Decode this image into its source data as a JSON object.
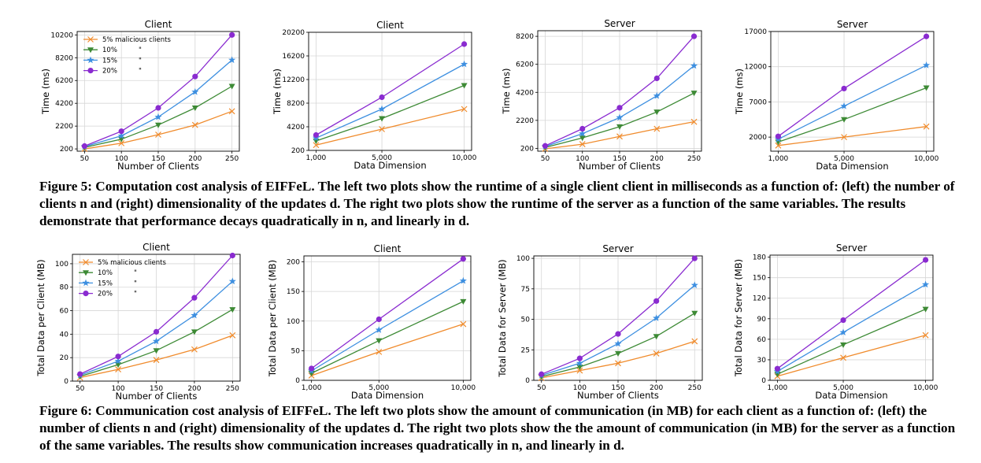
{
  "figure5": {
    "caption": "Figure 5: Computation cost analysis of EIFFeL. The left two plots show the runtime of a single client client in milliseconds as a function of: (left) the number of clients n and (right) dimensionality of the updates d. The right two plots show the runtime of the server as a function of the same variables. The results demonstrate that performance decays quadratically in n, and linearly in d."
  },
  "figure6": {
    "caption": "Figure 6: Communication cost analysis of EIFFeL. The left two plots show the amount of communication (in MB) for each client as a function of: (left) the number of clients n and (right) dimensionality of the updates d. The right two plots show the the amount of communication (in MB) for the server as a function of the same variables. The results show communication increases quadratically in n, and linearly in d."
  },
  "colors": {
    "5%": "#f08b2c",
    "10%": "#3d8a35",
    "15%": "#3d8fe0",
    "20%": "#8a2bd0"
  },
  "chart_data": [
    {
      "type": "line",
      "title": "Client",
      "xlabel": "Number of Clients",
      "ylabel": "Time (ms)",
      "x": [
        50,
        100,
        150,
        200,
        250
      ],
      "xticks": [
        "50",
        "100",
        "150",
        "200",
        "250"
      ],
      "ylim": [
        0,
        10500
      ],
      "yticks": [
        200,
        2200,
        4200,
        6200,
        8200,
        10200
      ],
      "legend": {
        "placement": "top-left",
        "entries": [
          "5% malicious clients",
          "10%",
          "15%",
          "20%"
        ],
        "ditto": [
          "",
          "\"",
          "\"",
          "\""
        ]
      },
      "series": [
        {
          "name": "5%",
          "values": [
            200,
            700,
            1450,
            2300,
            3500
          ]
        },
        {
          "name": "10%",
          "values": [
            330,
            1050,
            2300,
            3800,
            5700
          ]
        },
        {
          "name": "15%",
          "values": [
            400,
            1350,
            3000,
            5200,
            8000
          ]
        },
        {
          "name": "20%",
          "values": [
            450,
            1750,
            3800,
            6550,
            10200
          ]
        }
      ]
    },
    {
      "type": "line",
      "title": "Client",
      "xlabel": "Data Dimension",
      "ylabel": "Time (ms)",
      "x": [
        1000,
        5000,
        10000
      ],
      "xticks": [
        "1,000",
        "5,000",
        "10,000"
      ],
      "ylim": [
        200,
        20200
      ],
      "yticks": [
        200,
        4200,
        8200,
        12200,
        16200,
        20200
      ],
      "series": [
        {
          "name": "5%",
          "values": [
            1100,
            3800,
            7200
          ]
        },
        {
          "name": "10%",
          "values": [
            1800,
            5600,
            11200
          ]
        },
        {
          "name": "15%",
          "values": [
            2300,
            7200,
            14800
          ]
        },
        {
          "name": "20%",
          "values": [
            2800,
            9200,
            18200
          ]
        }
      ]
    },
    {
      "type": "line",
      "title": "Server",
      "xlabel": "Number of Clients",
      "ylabel": "Time (ms)",
      "x": [
        50,
        100,
        150,
        200,
        250
      ],
      "xticks": [
        "50",
        "100",
        "150",
        "200",
        "250"
      ],
      "ylim": [
        0,
        8600
      ],
      "yticks": [
        200,
        2200,
        4200,
        6200,
        8200
      ],
      "series": [
        {
          "name": "5%",
          "values": [
            170,
            500,
            1050,
            1600,
            2100
          ]
        },
        {
          "name": "10%",
          "values": [
            270,
            950,
            1750,
            2800,
            4150
          ]
        },
        {
          "name": "15%",
          "values": [
            330,
            1250,
            2400,
            3950,
            6100
          ]
        },
        {
          "name": "20%",
          "values": [
            380,
            1600,
            3100,
            5200,
            8200
          ]
        }
      ]
    },
    {
      "type": "line",
      "title": "Server",
      "xlabel": "Data Dimension",
      "ylabel": "Time (ms)",
      "x": [
        1000,
        5000,
        10000
      ],
      "xticks": [
        "1,000",
        "5,000",
        "10,000"
      ],
      "ylim": [
        0,
        17000
      ],
      "yticks": [
        2000,
        7000,
        12000,
        17000
      ],
      "series": [
        {
          "name": "5%",
          "values": [
            800,
            2000,
            3500
          ]
        },
        {
          "name": "10%",
          "values": [
            1300,
            4500,
            9000
          ]
        },
        {
          "name": "15%",
          "values": [
            1700,
            6400,
            12200
          ]
        },
        {
          "name": "20%",
          "values": [
            2100,
            8900,
            16300
          ]
        }
      ]
    },
    {
      "type": "line",
      "title": "Client",
      "xlabel": "Number of Clients",
      "ylabel": "Total Data per Client (MB)",
      "x": [
        50,
        100,
        150,
        200,
        250
      ],
      "xticks": [
        "50",
        "100",
        "150",
        "200",
        "250"
      ],
      "ylim": [
        0,
        108
      ],
      "yticks": [
        0,
        20,
        40,
        60,
        80,
        100
      ],
      "legend": {
        "placement": "top-left",
        "entries": [
          "5% malicious clients",
          "10%",
          "15%",
          "20%"
        ],
        "ditto": [
          "",
          "\"",
          "\"",
          "\""
        ]
      },
      "series": [
        {
          "name": "5%",
          "values": [
            3,
            10,
            18,
            27,
            39
          ]
        },
        {
          "name": "10%",
          "values": [
            4,
            14,
            26,
            42,
            61
          ]
        },
        {
          "name": "15%",
          "values": [
            5,
            17,
            34,
            56,
            85
          ]
        },
        {
          "name": "20%",
          "values": [
            6,
            21,
            42,
            71,
            107
          ]
        }
      ]
    },
    {
      "type": "line",
      "title": "Client",
      "xlabel": "Data Dimension",
      "ylabel": "Total Data per Client (MB)",
      "x": [
        1000,
        5000,
        10000
      ],
      "xticks": [
        "1,000",
        "5,000",
        "10,000"
      ],
      "ylim": [
        0,
        210
      ],
      "yticks": [
        0,
        50,
        100,
        150,
        200
      ],
      "series": [
        {
          "name": "5%",
          "values": [
            8,
            48,
            95
          ]
        },
        {
          "name": "10%",
          "values": [
            12,
            67,
            133
          ]
        },
        {
          "name": "15%",
          "values": [
            16,
            85,
            168
          ]
        },
        {
          "name": "20%",
          "values": [
            20,
            103,
            205
          ]
        }
      ]
    },
    {
      "type": "line",
      "title": "Server",
      "xlabel": "Number of Clients",
      "ylabel": "Total Data for Server (MB)",
      "x": [
        50,
        100,
        150,
        200,
        250
      ],
      "xticks": [
        "50",
        "100",
        "150",
        "200",
        "250"
      ],
      "ylim": [
        0,
        102
      ],
      "yticks": [
        0,
        25,
        50,
        75,
        100
      ],
      "series": [
        {
          "name": "5%",
          "values": [
            2,
            8,
            14,
            22,
            32
          ]
        },
        {
          "name": "10%",
          "values": [
            3,
            11,
            22,
            36,
            55
          ]
        },
        {
          "name": "15%",
          "values": [
            4,
            14,
            30,
            51,
            78
          ]
        },
        {
          "name": "20%",
          "values": [
            5,
            18,
            38,
            65,
            100
          ]
        }
      ]
    },
    {
      "type": "line",
      "title": "Server",
      "xlabel": "Data Dimension",
      "ylabel": "Total Data for Server (MB)",
      "x": [
        1000,
        5000,
        10000
      ],
      "xticks": [
        "1,000",
        "5,000",
        "10,000"
      ],
      "ylim": [
        0,
        183
      ],
      "yticks": [
        0,
        30,
        60,
        90,
        120,
        150,
        180
      ],
      "series": [
        {
          "name": "5%",
          "values": [
            6,
            33,
            66
          ]
        },
        {
          "name": "10%",
          "values": [
            9,
            52,
            104
          ]
        },
        {
          "name": "15%",
          "values": [
            13,
            70,
            140
          ]
        },
        {
          "name": "20%",
          "values": [
            17,
            88,
            176
          ]
        }
      ]
    }
  ]
}
